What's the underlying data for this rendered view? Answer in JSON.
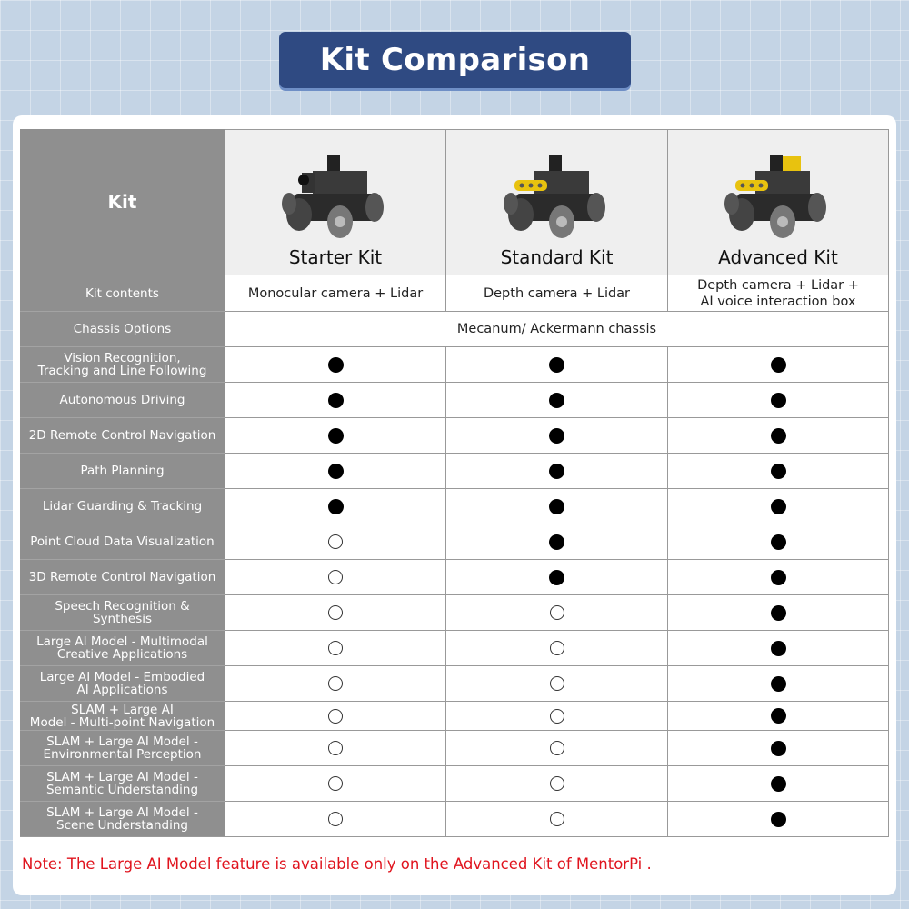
{
  "title": "Kit Comparison",
  "header_label": "Kit",
  "kits": [
    {
      "name": "Starter Kit",
      "contents": "Monocular camera + Lidar",
      "accessory": "monocular-camera"
    },
    {
      "name": "Standard Kit",
      "contents": "Depth camera + Lidar",
      "accessory": "depth-camera"
    },
    {
      "name": "Advanced Kit",
      "contents": "Depth camera + Lidar +\nAI voice interaction box",
      "accessory": "depth-camera-voice-box"
    }
  ],
  "kit_contents_label": "Kit contents",
  "chassis_label": "Chassis Options",
  "chassis_value": "Mecanum/ Ackermann chassis",
  "features": [
    {
      "name": "Vision Recognition,\nTracking and Line Following",
      "support": [
        true,
        true,
        true
      ]
    },
    {
      "name": "Autonomous Driving",
      "support": [
        true,
        true,
        true
      ]
    },
    {
      "name": "2D Remote Control Navigation",
      "support": [
        true,
        true,
        true
      ]
    },
    {
      "name": "Path Planning",
      "support": [
        true,
        true,
        true
      ]
    },
    {
      "name": "Lidar Guarding & Tracking",
      "support": [
        true,
        true,
        true
      ]
    },
    {
      "name": "Point Cloud Data Visualization",
      "support": [
        false,
        true,
        true
      ]
    },
    {
      "name": "3D Remote Control Navigation",
      "support": [
        false,
        true,
        true
      ]
    },
    {
      "name": "Speech Recognition & Synthesis",
      "support": [
        false,
        false,
        true
      ]
    },
    {
      "name": "Large AI Model - Multimodal\nCreative Applications",
      "support": [
        false,
        false,
        true
      ]
    },
    {
      "name": "Large AI Model - Embodied\nAI Applications",
      "support": [
        false,
        false,
        true
      ]
    },
    {
      "name": "SLAM + Large AI\nModel - Multi-point Navigation",
      "support": [
        false,
        false,
        true
      ]
    },
    {
      "name": "SLAM + Large AI Model -\nEnvironmental Perception",
      "support": [
        false,
        false,
        true
      ]
    },
    {
      "name": "SLAM + Large AI Model -\nSemantic Understanding",
      "support": [
        false,
        false,
        true
      ]
    },
    {
      "name": "SLAM + Large AI Model -\nScene Understanding",
      "support": [
        false,
        false,
        true
      ]
    }
  ],
  "legend": {
    "supported": "filled-circle",
    "not_supported": "empty-circle"
  },
  "colors": {
    "title_bg": "#2f4a82",
    "label_bg": "#8f8f8f",
    "note": "#e0141e",
    "accessory": "#e8c20f"
  },
  "note": "Note: The Large AI  Model feature is available only on the Advanced Kit of MentorPi ."
}
